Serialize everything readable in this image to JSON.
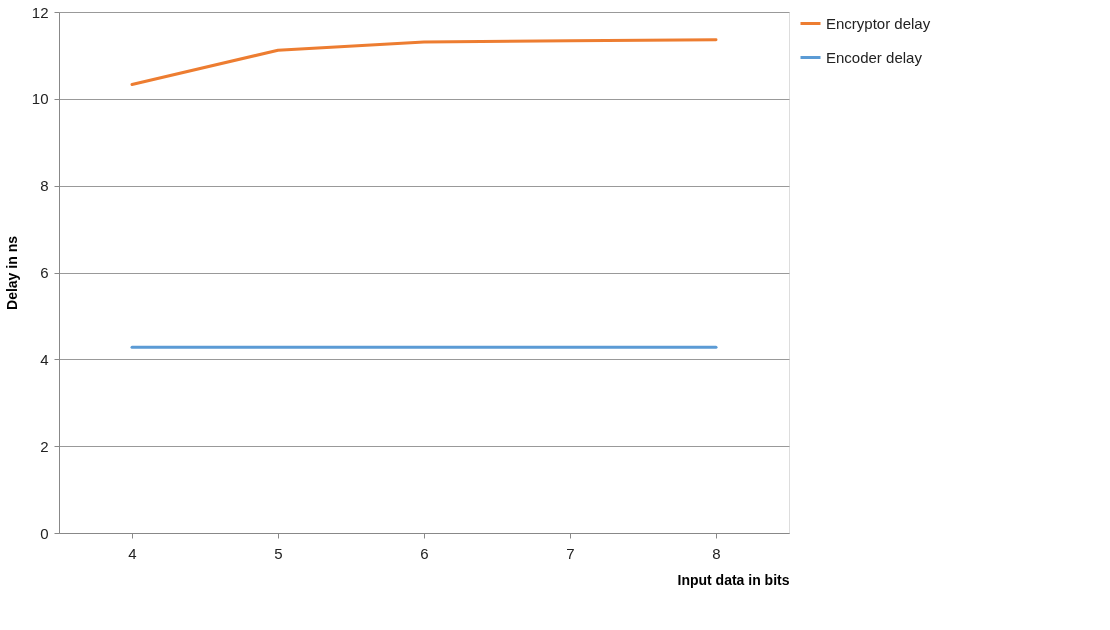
{
  "chart_data": {
    "type": "line",
    "xlabel": "Input data in bits",
    "ylabel": "Delay in ns",
    "categories": [
      "4",
      "5",
      "6",
      "7",
      "8"
    ],
    "series": [
      {
        "name": "Encryptor delay",
        "color": "#ed7d31",
        "values": [
          10.33,
          11.12,
          11.31,
          11.34,
          11.36
        ]
      },
      {
        "name": "Encoder delay",
        "color": "#5b9bd5",
        "values": [
          4.28,
          4.28,
          4.28,
          4.28,
          4.28
        ]
      }
    ],
    "ylim": [
      0,
      12
    ],
    "yticks": [
      0,
      2,
      4,
      6,
      8,
      10,
      12
    ],
    "grid": "y",
    "legend": "right",
    "marker": "none",
    "line_style": "solid"
  }
}
